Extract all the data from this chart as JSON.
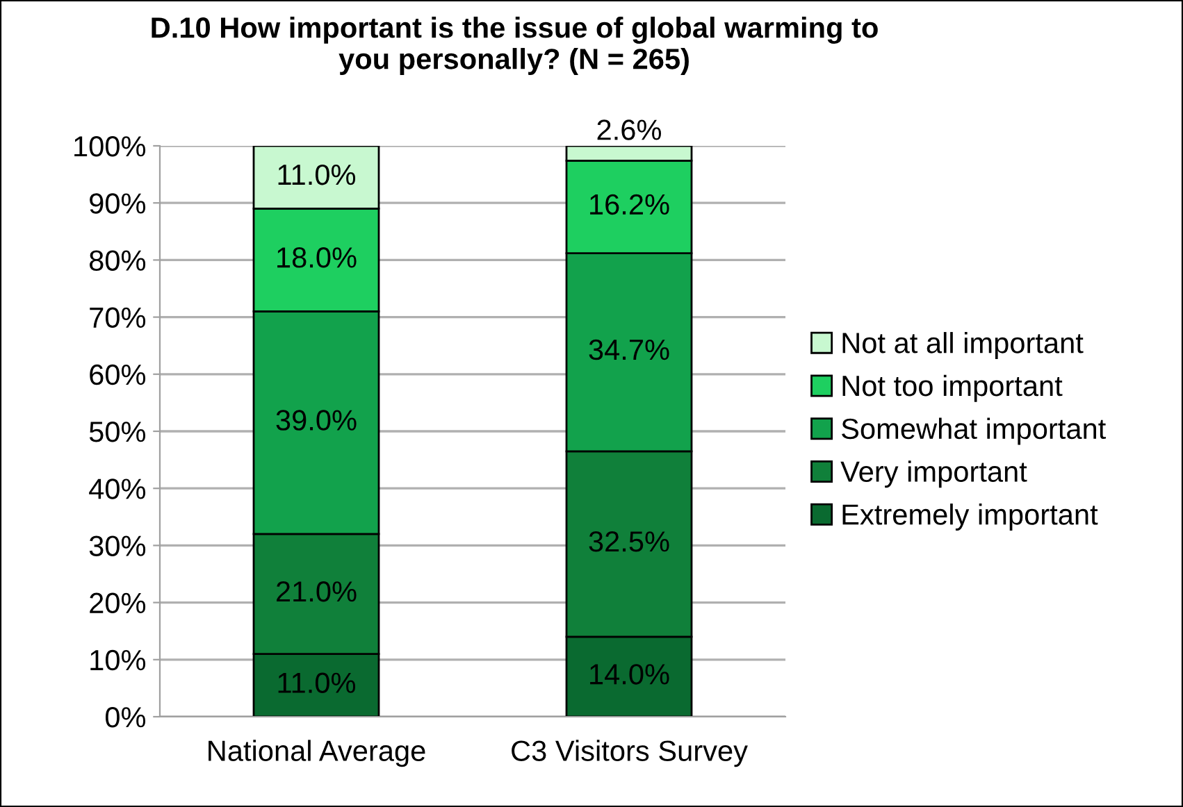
{
  "chart_data": {
    "type": "bar",
    "stacked": true,
    "title": "D.10 How important is the issue of global warming to\nyou personally? (N = 265)",
    "categories": [
      "National Average",
      "C3 Visitors Survey"
    ],
    "series": [
      {
        "name": "Extremely important",
        "color": "#0a6a30",
        "values": [
          11.0,
          14.0
        ],
        "value_labels": [
          "11.0%",
          "14.0%"
        ]
      },
      {
        "name": "Very important",
        "color": "#10803a",
        "values": [
          21.0,
          32.5
        ],
        "value_labels": [
          "21.0%",
          "32.5%"
        ]
      },
      {
        "name": "Somewhat important",
        "color": "#12a24c",
        "values": [
          39.0,
          34.7
        ],
        "value_labels": [
          "39.0%",
          "34.7%"
        ]
      },
      {
        "name": "Not too important",
        "color": "#1ecf60",
        "values": [
          18.0,
          16.2
        ],
        "value_labels": [
          "18.0%",
          "16.2%"
        ]
      },
      {
        "name": "Not at all important",
        "color": "#c8f8d0",
        "values": [
          11.0,
          2.6
        ],
        "value_labels": [
          "11.0%",
          "2.6%"
        ]
      }
    ],
    "ylim": [
      0,
      100
    ],
    "yticks": [
      {
        "value": 0,
        "label": "0%"
      },
      {
        "value": 10,
        "label": "10%"
      },
      {
        "value": 20,
        "label": "20%"
      },
      {
        "value": 30,
        "label": "30%"
      },
      {
        "value": 40,
        "label": "40%"
      },
      {
        "value": 50,
        "label": "50%"
      },
      {
        "value": 60,
        "label": "60%"
      },
      {
        "value": 70,
        "label": "70%"
      },
      {
        "value": 80,
        "label": "80%"
      },
      {
        "value": 90,
        "label": "90%"
      },
      {
        "value": 100,
        "label": "100%"
      }
    ],
    "grid": "y",
    "legend": "right"
  }
}
